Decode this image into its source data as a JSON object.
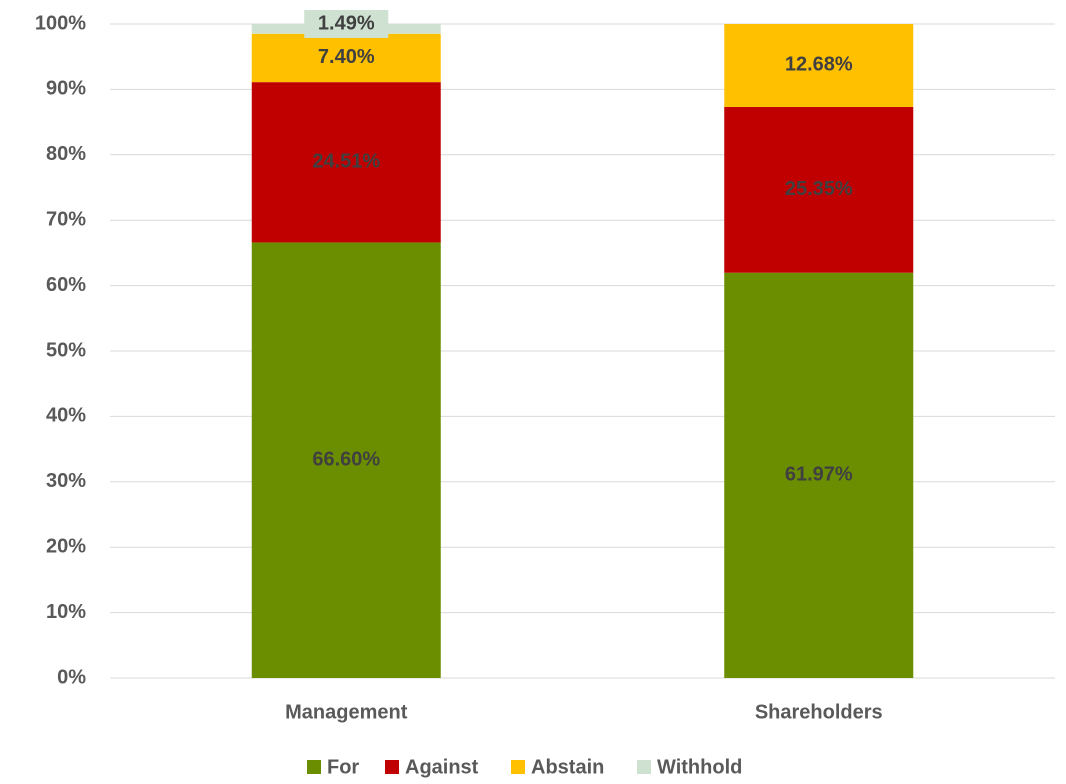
{
  "chart_data": {
    "type": "stacked_bar",
    "categories": [
      "Management",
      "Shareholders"
    ],
    "series": [
      {
        "name": "For",
        "color": "#6b8e00",
        "values": [
          66.6,
          61.97
        ],
        "value_labels": [
          "66.60%",
          "61.97%"
        ]
      },
      {
        "name": "Against",
        "color": "#c00000",
        "values": [
          24.51,
          25.35
        ],
        "value_labels": [
          "24.51%",
          "25.35%"
        ]
      },
      {
        "name": "Abstain",
        "color": "#ffc000",
        "values": [
          7.4,
          12.68
        ],
        "value_labels": [
          "7.40%",
          "12.68%"
        ]
      },
      {
        "name": "Withhold",
        "color": "#cfe2d2",
        "values": [
          1.49,
          null
        ],
        "value_labels": [
          "1.49%",
          null
        ]
      }
    ],
    "ylim": [
      0,
      100
    ],
    "yticks": [
      {
        "value": 0,
        "label": "0%"
      },
      {
        "value": 10,
        "label": "10%"
      },
      {
        "value": 20,
        "label": "20%"
      },
      {
        "value": 30,
        "label": "30%"
      },
      {
        "value": 40,
        "label": "40%"
      },
      {
        "value": 50,
        "label": "50%"
      },
      {
        "value": 60,
        "label": "60%"
      },
      {
        "value": 70,
        "label": "70%"
      },
      {
        "value": 80,
        "label": "80%"
      },
      {
        "value": 90,
        "label": "90%"
      },
      {
        "value": 100,
        "label": "100%"
      }
    ],
    "grid": true,
    "legend": "bottom"
  }
}
